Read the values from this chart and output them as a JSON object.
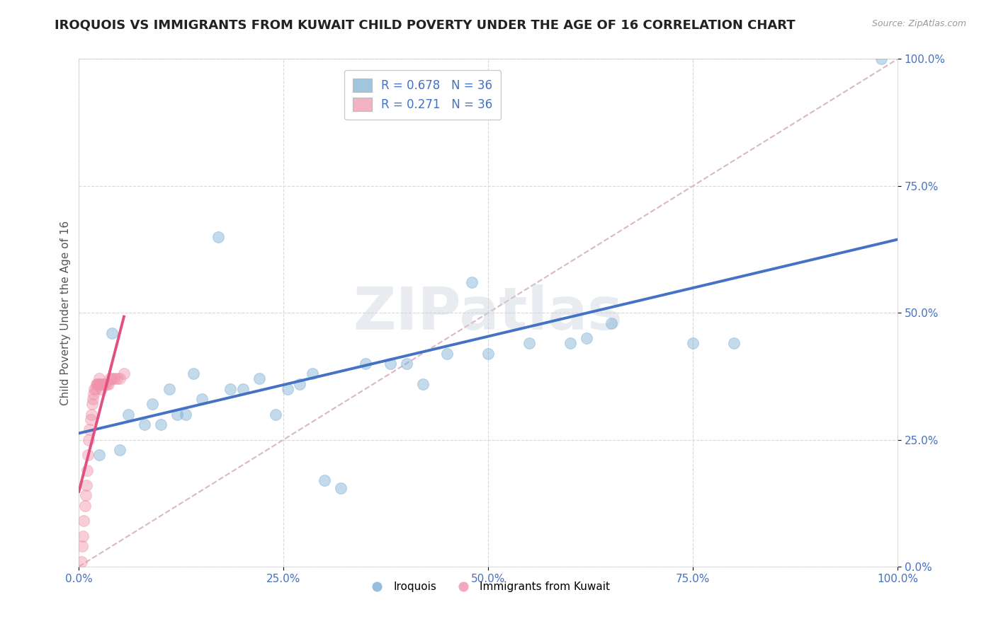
{
  "title": "IROQUOIS VS IMMIGRANTS FROM KUWAIT CHILD POVERTY UNDER THE AGE OF 16 CORRELATION CHART",
  "source": "Source: ZipAtlas.com",
  "ylabel": "Child Poverty Under the Age of 16",
  "xlabel": "",
  "watermark": "ZIPatlas",
  "iroquois_color": "#7aaed4",
  "kuwait_color": "#f093aa",
  "iroquois_line_color": "#4472c4",
  "kuwait_line_color": "#e05080",
  "diagonal_color": "#d9b8c4",
  "diagonal_style": "--",
  "xlim": [
    0,
    1
  ],
  "ylim": [
    0,
    1
  ],
  "xticks": [
    0.0,
    0.25,
    0.5,
    0.75,
    1.0
  ],
  "yticks": [
    0.0,
    0.25,
    0.5,
    0.75,
    1.0
  ],
  "xticklabels": [
    "0.0%",
    "25.0%",
    "50.0%",
    "75.0%",
    "100.0%"
  ],
  "yticklabels": [
    "0.0%",
    "25.0%",
    "50.0%",
    "75.0%",
    "100.0%"
  ],
  "iroquois_x": [
    0.025,
    0.04,
    0.05,
    0.06,
    0.08,
    0.09,
    0.1,
    0.11,
    0.12,
    0.13,
    0.14,
    0.15,
    0.17,
    0.185,
    0.2,
    0.22,
    0.24,
    0.255,
    0.27,
    0.285,
    0.3,
    0.32,
    0.35,
    0.38,
    0.4,
    0.42,
    0.45,
    0.48,
    0.5,
    0.55,
    0.6,
    0.62,
    0.65,
    0.75,
    0.8,
    0.98
  ],
  "iroquois_y": [
    0.22,
    0.46,
    0.23,
    0.3,
    0.28,
    0.32,
    0.28,
    0.35,
    0.3,
    0.3,
    0.38,
    0.33,
    0.65,
    0.35,
    0.35,
    0.37,
    0.3,
    0.35,
    0.36,
    0.38,
    0.17,
    0.155,
    0.4,
    0.4,
    0.4,
    0.36,
    0.42,
    0.56,
    0.42,
    0.44,
    0.44,
    0.45,
    0.48,
    0.44,
    0.44,
    1.0
  ],
  "kuwait_x": [
    0.003,
    0.004,
    0.005,
    0.006,
    0.007,
    0.008,
    0.009,
    0.01,
    0.011,
    0.012,
    0.013,
    0.014,
    0.015,
    0.016,
    0.017,
    0.018,
    0.019,
    0.02,
    0.021,
    0.022,
    0.023,
    0.024,
    0.025,
    0.026,
    0.027,
    0.028,
    0.03,
    0.032,
    0.034,
    0.036,
    0.038,
    0.04,
    0.043,
    0.046,
    0.05,
    0.055
  ],
  "kuwait_y": [
    0.01,
    0.04,
    0.06,
    0.09,
    0.12,
    0.14,
    0.16,
    0.19,
    0.22,
    0.25,
    0.27,
    0.29,
    0.3,
    0.32,
    0.33,
    0.34,
    0.35,
    0.35,
    0.36,
    0.36,
    0.36,
    0.36,
    0.37,
    0.36,
    0.35,
    0.36,
    0.36,
    0.36,
    0.36,
    0.36,
    0.37,
    0.37,
    0.37,
    0.37,
    0.37,
    0.38
  ],
  "R_iroquois": 0.678,
  "N_iroquois": 36,
  "R_kuwait": 0.271,
  "N_kuwait": 36,
  "legend_labels_bottom": [
    "Iroquois",
    "Immigrants from Kuwait"
  ],
  "background_color": "#ffffff",
  "grid_color": "#d8d8d8",
  "title_fontsize": 13,
  "axis_label_fontsize": 11,
  "tick_fontsize": 11,
  "marker_size": 130,
  "marker_alpha": 0.45,
  "iroquois_line_start": 0.0,
  "iroquois_line_end": 1.0,
  "kuwait_line_start": 0.0,
  "kuwait_line_end": 0.055
}
